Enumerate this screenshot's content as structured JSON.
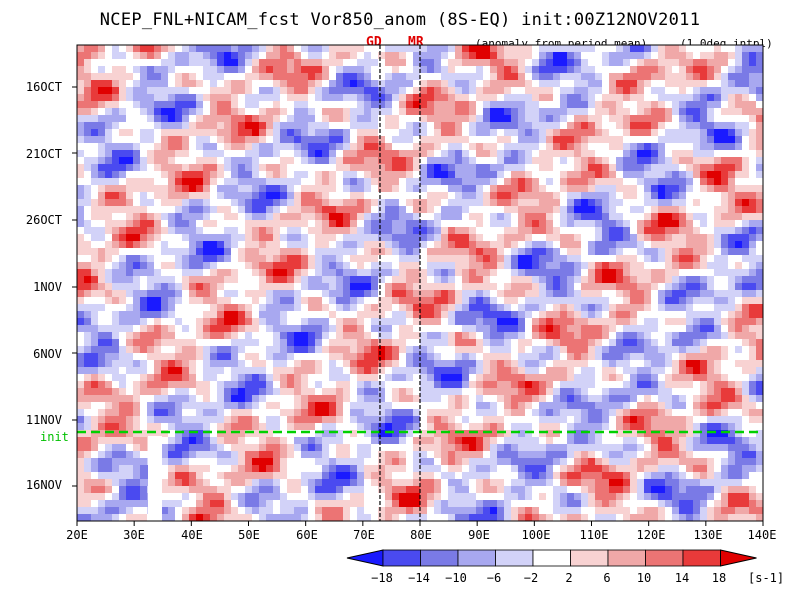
{
  "chart_data": {
    "type": "heatmap",
    "title": "NCEP_FNL+NICAM_fcst Vor850_anom (8S-EQ) init:00Z12NOV2011",
    "subtitle_right": "(anomaly from period mean)",
    "subtitle_interp": "(1.0deg intpl)",
    "markers": [
      {
        "label": "GD",
        "lon": 73
      },
      {
        "label": "MR",
        "lon": 80
      }
    ],
    "x_axis": {
      "range": [
        20,
        140
      ],
      "ticks": [
        "20E",
        "30E",
        "40E",
        "50E",
        "60E",
        "70E",
        "80E",
        "90E",
        "100E",
        "110E",
        "120E",
        "130E",
        "140E"
      ],
      "tick_values": [
        20,
        30,
        40,
        50,
        60,
        70,
        80,
        90,
        100,
        110,
        120,
        130,
        140
      ]
    },
    "y_axis": {
      "direction": "time increases downward",
      "ticks": [
        "16OCT",
        "21OCT",
        "26OCT",
        "1NOV",
        "6NOV",
        "11NOV",
        "16NOV"
      ]
    },
    "init_line": {
      "label": "init",
      "color": "#00d000"
    },
    "colorbar": {
      "levels": [
        -18,
        -14,
        -10,
        -6,
        -2,
        2,
        6,
        10,
        14,
        18
      ],
      "labels": [
        "−18",
        "−14",
        "−10",
        "−6",
        "−2",
        "2",
        "6",
        "10",
        "14",
        "18"
      ],
      "colors": [
        "#1a1aff",
        "#4a4af0",
        "#7a7ae6",
        "#a8a8f0",
        "#d2d2f8",
        "#ffffff",
        "#f8d2d2",
        "#f0a8a8",
        "#ec7474",
        "#e83a3a",
        "#e00000"
      ],
      "unit": "[s-1]"
    }
  }
}
